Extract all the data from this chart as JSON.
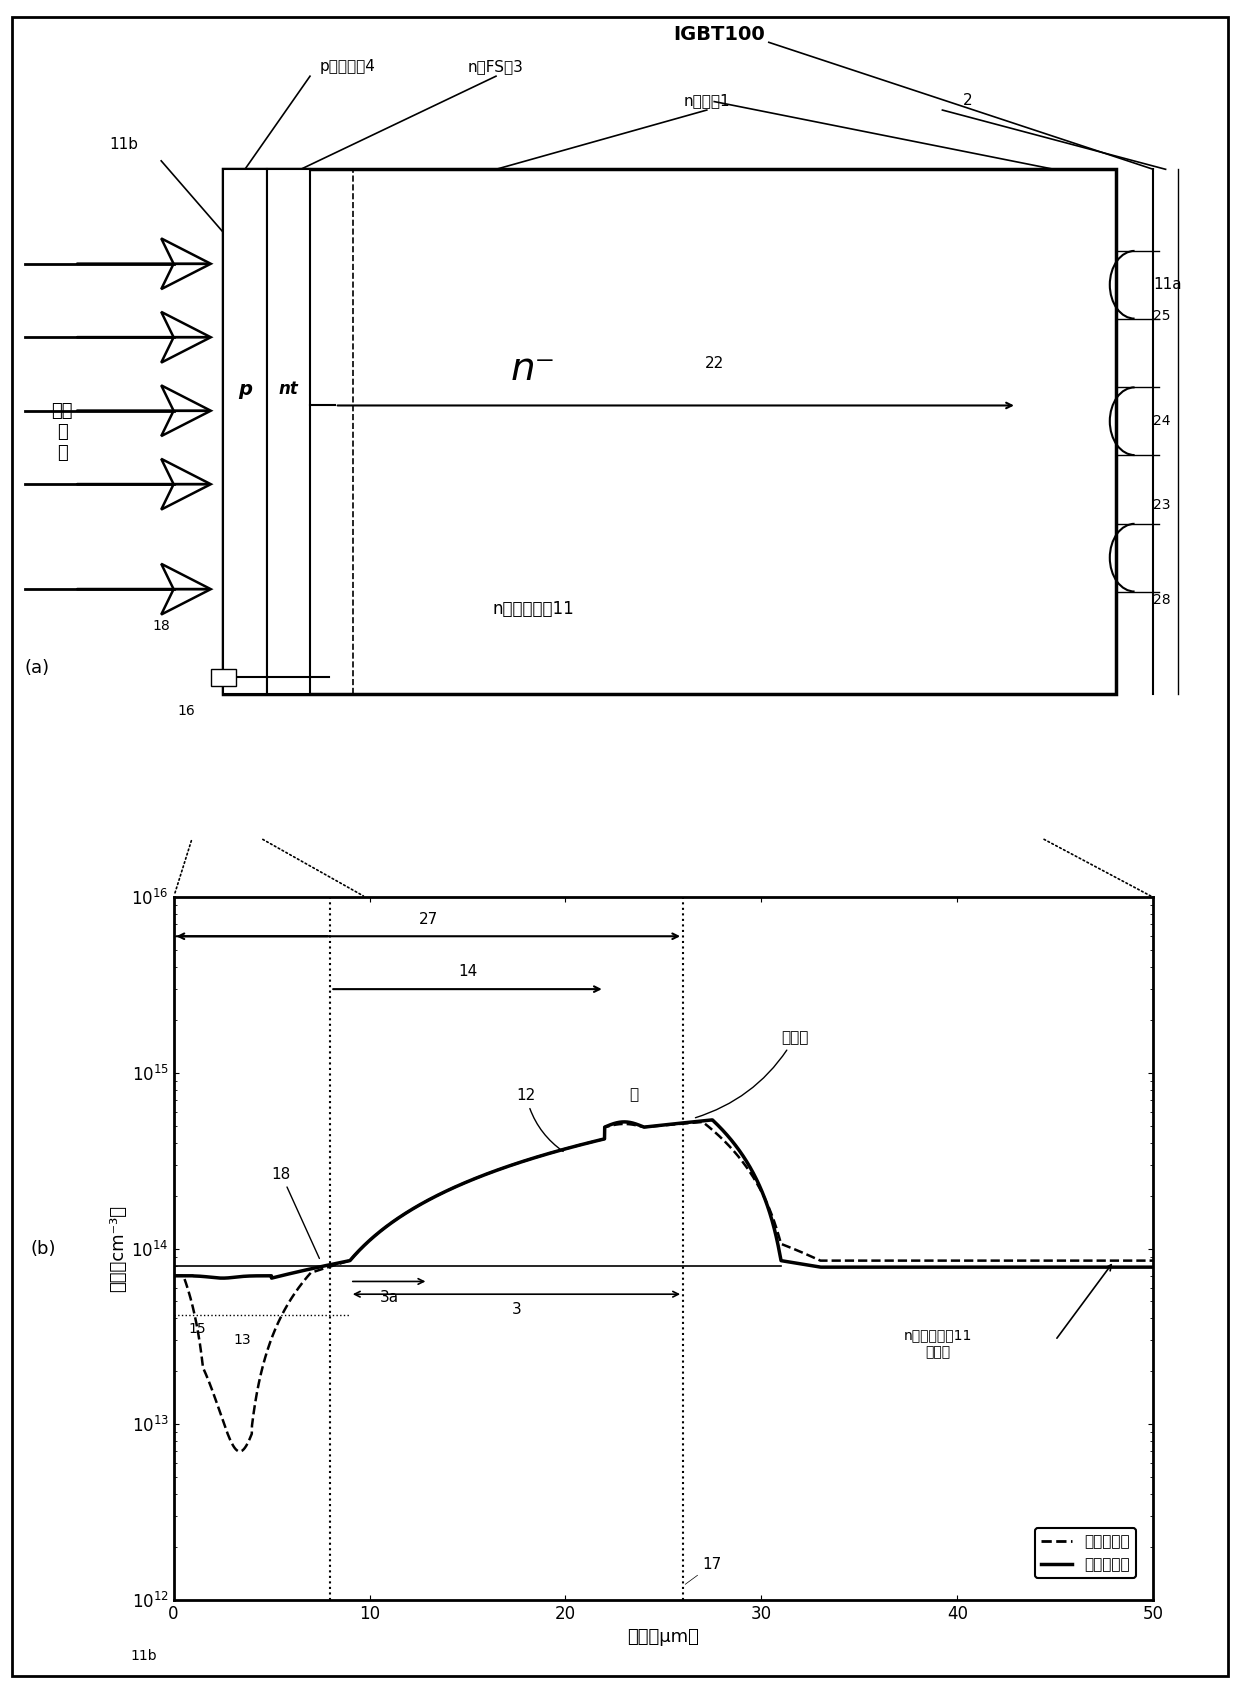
{
  "fig_width": 12.4,
  "fig_height": 16.93,
  "bg_color": "#ffffff",
  "diagram": {
    "igbt_label": "IGBT100",
    "p_layer": "p集电极卥4",
    "n_fs_layer": "n型FS卥3",
    "n_drift": "n漂移卥1",
    "n2_label": "2",
    "n_minus": "n⁻",
    "n_semi": "n半导体基板11",
    "proton": "质子\n注\n入",
    "label_11b": "11b",
    "label_16": "16",
    "label_18": "18",
    "label_11a": "11a",
    "label_25": "25",
    "label_24": "24",
    "label_23": "23",
    "label_28": "28",
    "label_22": "22",
    "label_a": "(a)"
  },
  "graph": {
    "ylabel": "浓度（cm⁻³）",
    "xlabel": "深度（μm）",
    "label_b": "(b)",
    "label_11b": "11b",
    "label_27": "27",
    "label_14": "14",
    "label_12": "12",
    "label_mountain": "山",
    "label_peak": "ピーク",
    "label_18": "18",
    "label_15": "15",
    "label_13": "13",
    "label_3a": "3a",
    "label_3": "3",
    "label_17": "17",
    "label_n_semi": "n半导体基板11\n的浓度",
    "legend_dashed": "无激光退火",
    "legend_solid": "有激光退火"
  }
}
